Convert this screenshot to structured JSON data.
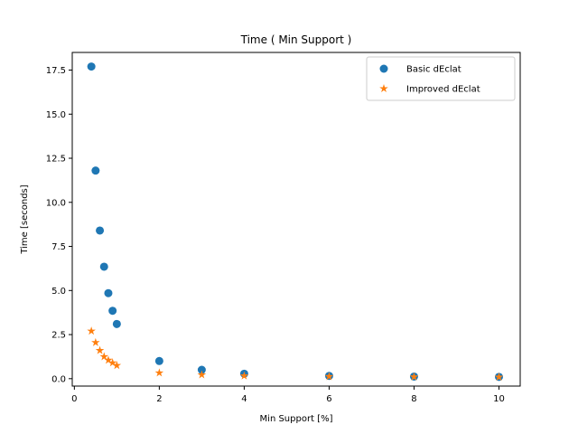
{
  "chart_data": {
    "type": "scatter",
    "title": "Time ( Min Support )",
    "xlabel": "Min Support [%]",
    "ylabel": "Time [seconds]",
    "xlim": [
      -0.05,
      10.5
    ],
    "ylim": [
      -0.42,
      18.5
    ],
    "xticks": [
      0,
      2,
      4,
      6,
      8,
      10
    ],
    "xtick_labels": [
      "0",
      "2",
      "4",
      "6",
      "8",
      "10"
    ],
    "yticks": [
      0.0,
      2.5,
      5.0,
      7.5,
      10.0,
      12.5,
      15.0,
      17.5
    ],
    "ytick_labels": [
      "0.0",
      "2.5",
      "5.0",
      "7.5",
      "10.0",
      "12.5",
      "15.0",
      "17.5"
    ],
    "grid": false,
    "legend_position": "top-right",
    "series": [
      {
        "name": "Basic dEclat",
        "marker": "circle",
        "color": "#1f77b4",
        "x": [
          0.4,
          0.5,
          0.6,
          0.7,
          0.8,
          0.9,
          1.0,
          2.0,
          3.0,
          4.0,
          6.0,
          8.0,
          10.0
        ],
        "y": [
          17.7,
          11.8,
          8.4,
          6.35,
          4.85,
          3.85,
          3.1,
          1.0,
          0.5,
          0.28,
          0.16,
          0.12,
          0.1
        ]
      },
      {
        "name": "Improved dEclat",
        "marker": "star",
        "color": "#ff7f0e",
        "x": [
          0.4,
          0.5,
          0.6,
          0.7,
          0.8,
          0.9,
          1.0,
          2.0,
          3.0,
          4.0,
          6.0,
          8.0,
          10.0
        ],
        "y": [
          2.7,
          2.05,
          1.6,
          1.25,
          1.05,
          0.9,
          0.75,
          0.33,
          0.22,
          0.16,
          0.12,
          0.1,
          0.09
        ]
      }
    ]
  }
}
